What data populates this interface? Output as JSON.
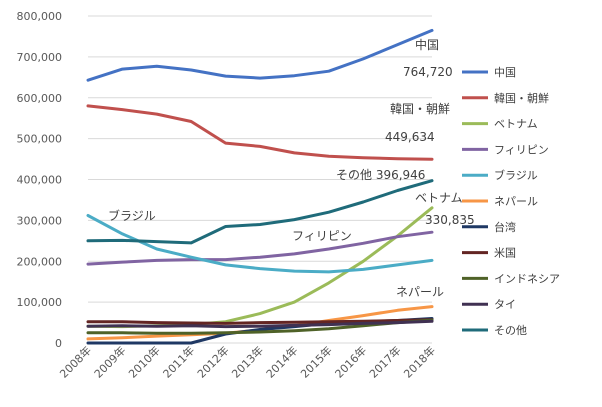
{
  "chart_data": {
    "type": "line",
    "categories": [
      "2008年",
      "2009年",
      "2010年",
      "2011年",
      "2012年",
      "2013年",
      "2014年",
      "2015年",
      "2016年",
      "2017年",
      "2018年"
    ],
    "ylim": [
      0,
      800000
    ],
    "yticks": [
      "0",
      "100,000",
      "200,000",
      "300,000",
      "400,000",
      "500,000",
      "600,000",
      "700,000",
      "800,000"
    ],
    "grid": true,
    "legend_position": "right",
    "series": [
      {
        "name": "中国",
        "color": "#4472C4",
        "values": [
          643000,
          670000,
          677000,
          668000,
          653000,
          648000,
          654000,
          665000,
          695000,
          730000,
          764720
        ]
      },
      {
        "name": "韓国・朝鮮",
        "color": "#C0504D",
        "values": [
          580000,
          571000,
          560000,
          542000,
          489000,
          481000,
          465000,
          457000,
          453000,
          451000,
          449634
        ]
      },
      {
        "name": "ベトナム",
        "color": "#9BBB59",
        "values": [
          41000,
          40000,
          42000,
          45000,
          52000,
          72000,
          100000,
          147000,
          200000,
          262000,
          330835
        ]
      },
      {
        "name": "フィリピン",
        "color": "#8064A2",
        "values": [
          193000,
          198000,
          202000,
          204000,
          204000,
          210000,
          218000,
          230000,
          244000,
          260000,
          271000
        ]
      },
      {
        "name": "ブラジル",
        "color": "#4BACC6",
        "values": [
          312000,
          267000,
          230000,
          210000,
          191000,
          182000,
          176000,
          174000,
          180000,
          191000,
          202000
        ]
      },
      {
        "name": "ネパール",
        "color": "#F79646",
        "values": [
          10000,
          13000,
          17000,
          20000,
          24000,
          32000,
          42000,
          55000,
          67000,
          80000,
          89000
        ]
      },
      {
        "name": "台湾",
        "color": "#1F3864",
        "values": [
          0,
          0,
          0,
          0,
          22000,
          33000,
          40000,
          48000,
          52000,
          55000,
          60000
        ]
      },
      {
        "name": "米国",
        "color": "#632523",
        "values": [
          52000,
          52000,
          50000,
          49000,
          48000,
          50000,
          51000,
          52000,
          53000,
          55000,
          57000
        ]
      },
      {
        "name": "インドネシア",
        "color": "#4F6228",
        "values": [
          25000,
          25000,
          24000,
          24000,
          25000,
          27000,
          30000,
          35000,
          42000,
          50000,
          56000
        ]
      },
      {
        "name": "タイ",
        "color": "#403152",
        "values": [
          41000,
          42000,
          41000,
          42000,
          40000,
          41000,
          43000,
          45000,
          48000,
          50000,
          53000
        ]
      },
      {
        "name": "その他",
        "color": "#1F6B7A",
        "values": [
          250000,
          251000,
          248000,
          245000,
          285000,
          290000,
          302000,
          320000,
          345000,
          373000,
          396946
        ]
      }
    ],
    "annotations": [
      {
        "text": "中国",
        "series": "中国",
        "anchor": "label"
      },
      {
        "text": "764,720",
        "series": "中国",
        "anchor": "value"
      },
      {
        "text": "韓国・朝鮮",
        "series": "韓国・朝鮮",
        "anchor": "label"
      },
      {
        "text": "449,634",
        "series": "韓国・朝鮮",
        "anchor": "value"
      },
      {
        "text": "その他 396,946",
        "series": "その他",
        "anchor": "label"
      },
      {
        "text": "ベトナム",
        "series": "ベトナム",
        "anchor": "label"
      },
      {
        "text": "330,835",
        "series": "ベトナム",
        "anchor": "value"
      },
      {
        "text": "ブラジル",
        "series": "ブラジル",
        "anchor": "label"
      },
      {
        "text": "フィリピン",
        "series": "フィリピン",
        "anchor": "label"
      },
      {
        "text": "ネパール",
        "series": "ネパール",
        "anchor": "label"
      }
    ]
  }
}
